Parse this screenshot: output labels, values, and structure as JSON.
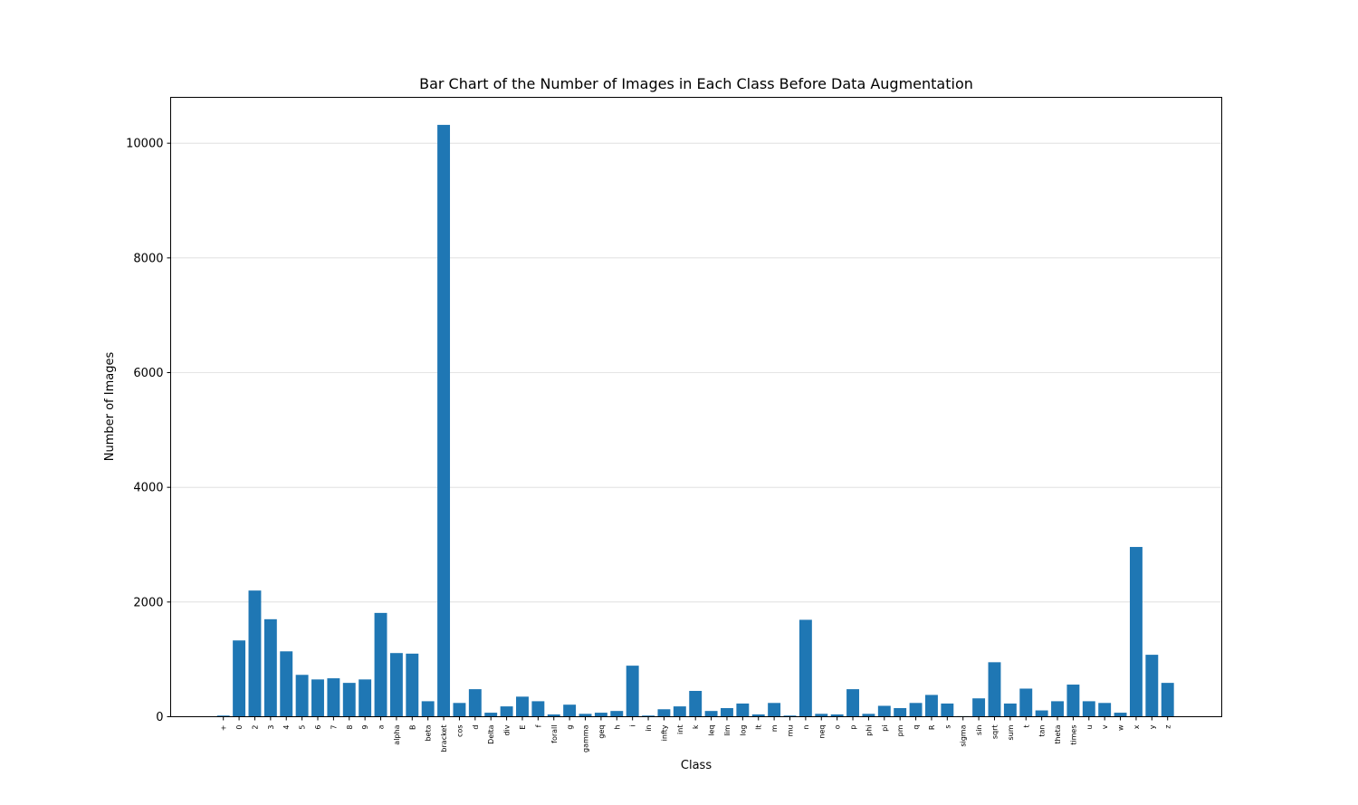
{
  "chart_data": {
    "type": "bar",
    "title": "Bar Chart of the Number of Images in Each Class Before Data Augmentation",
    "xlabel": "Class",
    "ylabel": "Number of Images",
    "ylim": [
      0,
      10800
    ],
    "yticks": [
      0,
      2000,
      4000,
      6000,
      8000,
      10000
    ],
    "grid": "horizontal",
    "bar_color": "#1f77b4",
    "categories": [
      "+",
      "0",
      "2",
      "3",
      "4",
      "5",
      "6",
      "7",
      "8",
      "9",
      "a",
      "alpha",
      "B",
      "beta",
      "bracket",
      "cos",
      "d",
      "Delta",
      "div",
      "E",
      "f",
      "forall",
      "g",
      "gamma",
      "geq",
      "h",
      "i",
      "in",
      "infty",
      "int",
      "k",
      "leq",
      "lim",
      "log",
      "lt",
      "m",
      "mu",
      "n",
      "neq",
      "o",
      "p",
      "phi",
      "pi",
      "pm",
      "q",
      "R",
      "s",
      "sigma",
      "sin",
      "sqrt",
      "sum",
      "t",
      "tan",
      "theta",
      "times",
      "u",
      "v",
      "w",
      "x",
      "y",
      "z"
    ],
    "values": [
      20,
      1330,
      2200,
      1700,
      1140,
      730,
      650,
      670,
      590,
      650,
      1810,
      1110,
      1100,
      270,
      10320,
      240,
      480,
      70,
      180,
      350,
      270,
      40,
      210,
      50,
      70,
      100,
      890,
      20,
      130,
      180,
      450,
      100,
      150,
      230,
      40,
      240,
      20,
      1690,
      50,
      40,
      480,
      50,
      190,
      150,
      240,
      380,
      230,
      10,
      320,
      950,
      230,
      490,
      110,
      270,
      560,
      270,
      240,
      70,
      2960,
      1080,
      590
    ]
  }
}
